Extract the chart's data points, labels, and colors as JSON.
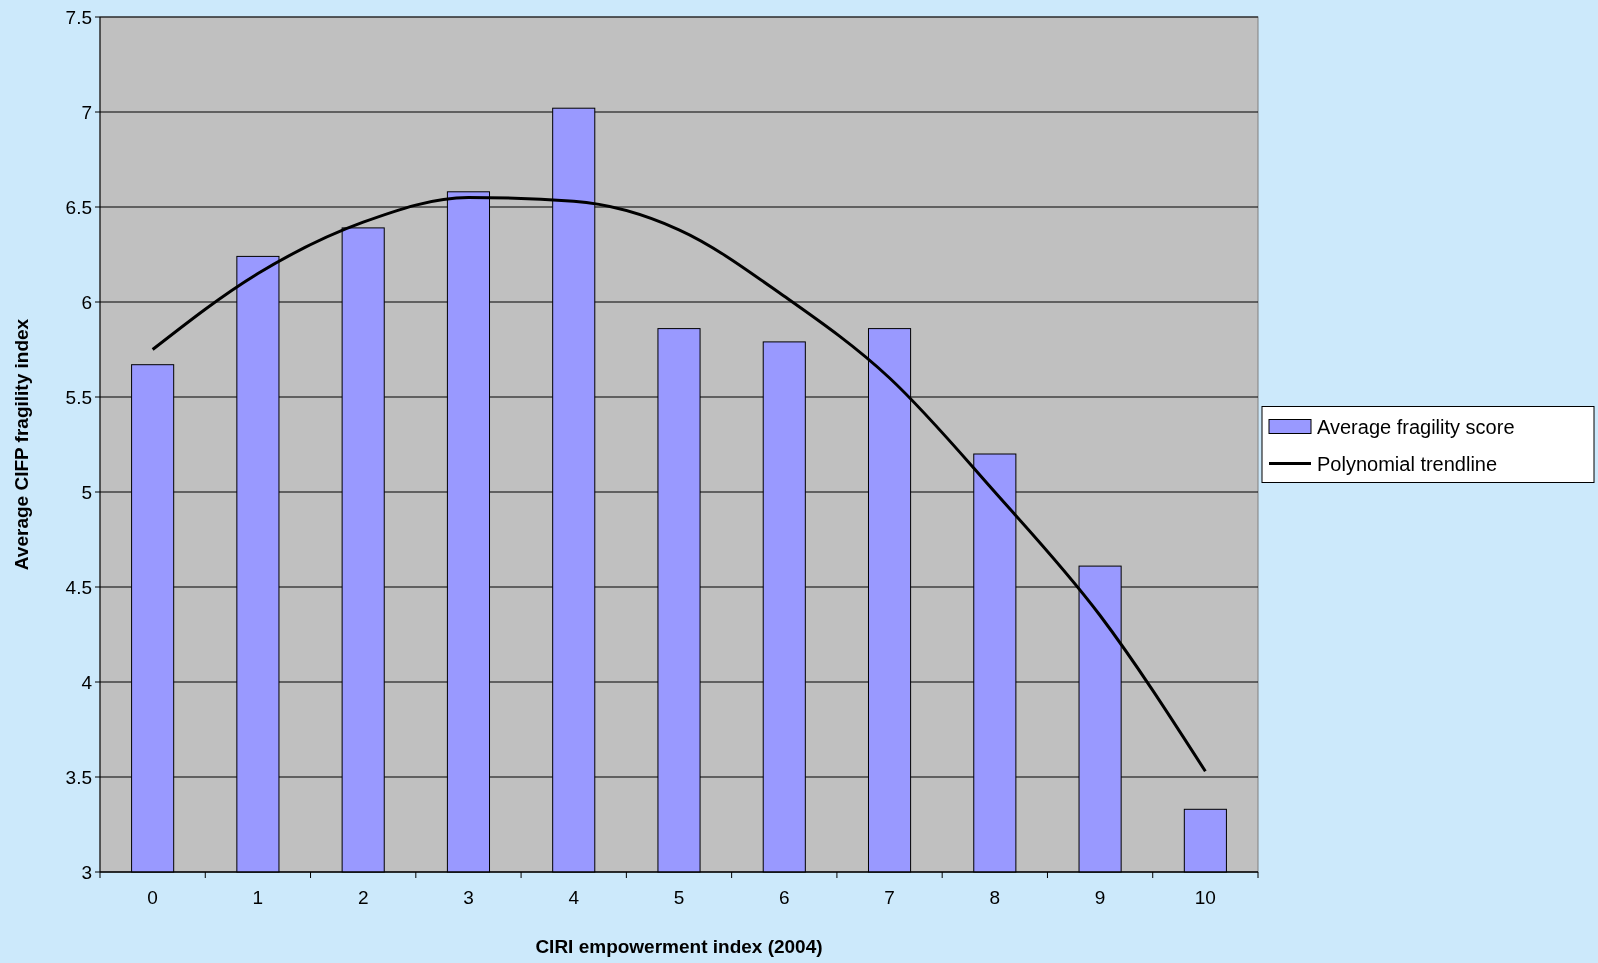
{
  "chart_data": {
    "type": "bar",
    "xlabel": "CIRI empowerment index (2004)",
    "ylabel": "Average CIFP fragility index",
    "categories": [
      "0",
      "1",
      "2",
      "3",
      "4",
      "5",
      "6",
      "7",
      "8",
      "9",
      "10"
    ],
    "series": [
      {
        "name": "Average fragility score",
        "color": "#9999ff",
        "values": [
          5.67,
          6.24,
          6.39,
          6.58,
          7.02,
          5.86,
          5.79,
          5.86,
          5.2,
          4.61,
          3.33
        ]
      },
      {
        "name": "Polynomial trendline",
        "type": "line",
        "color": "#000000",
        "x": [
          "0",
          "1",
          "2",
          "3",
          "4",
          "5",
          "6",
          "7",
          "8",
          "9",
          "10"
        ],
        "values": [
          5.75,
          6.15,
          6.42,
          6.55,
          6.53,
          6.38,
          6.03,
          5.6,
          5.0,
          4.35,
          3.53
        ]
      }
    ],
    "ylim": [
      3,
      7.5
    ],
    "yticks": [
      3,
      3.5,
      4,
      4.5,
      5,
      5.5,
      6,
      6.5,
      7,
      7.5
    ],
    "grid": "y",
    "legend": "right"
  }
}
